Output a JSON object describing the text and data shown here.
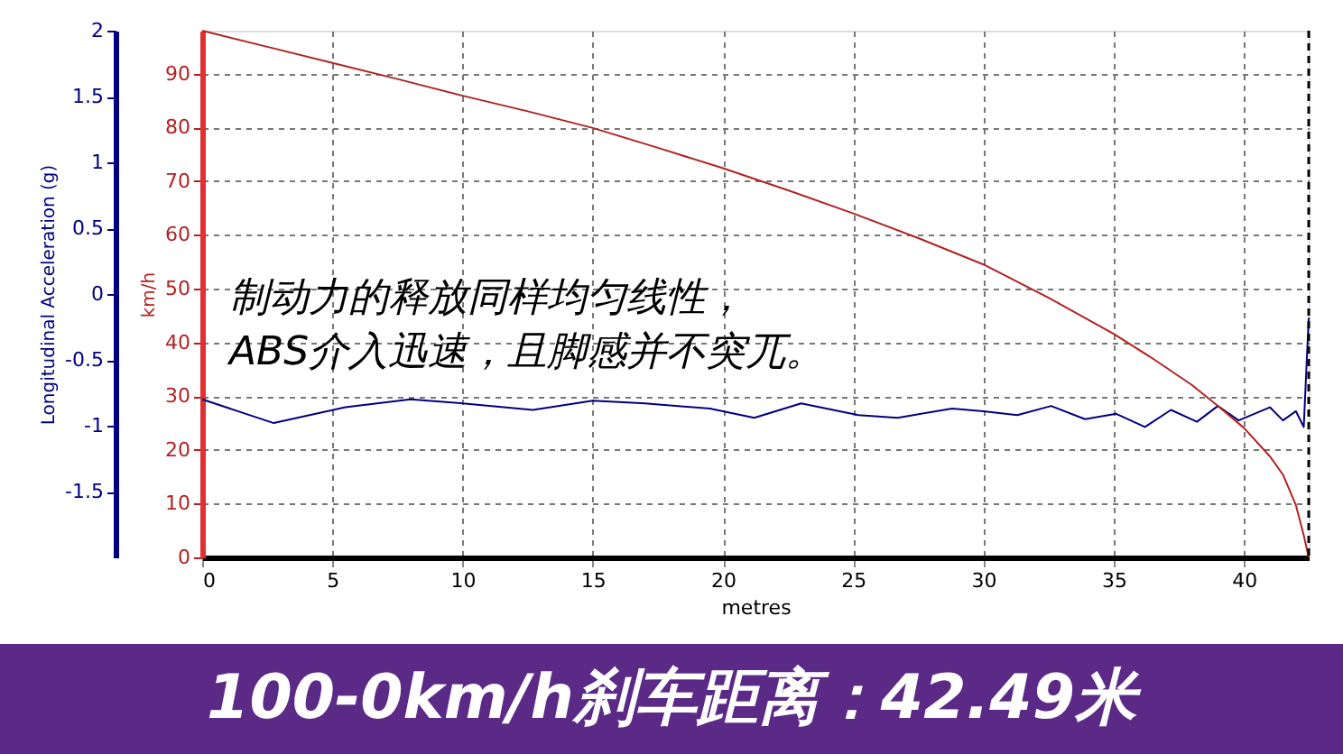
{
  "chart_data": {
    "type": "line",
    "title": "100-0km/h刹车距离：42.49米",
    "xlabel": "metres",
    "ylabel": "Longitudinal Acceleration (g)",
    "y2label": "km/h",
    "annotations": [
      "制动力的释放同样均匀线性，",
      "ABS介入迅速，且脚感并不突兀。"
    ],
    "xlim": [
      0,
      42.49
    ],
    "xticks": [
      0,
      5,
      10,
      15,
      20,
      25,
      30,
      35,
      40
    ],
    "ylim": [
      -2,
      2
    ],
    "yticks": [
      -1.5,
      -1,
      -0.5,
      0,
      0.5,
      1,
      1.5,
      2
    ],
    "y2lim": [
      0,
      98
    ],
    "y2ticks": [
      0,
      10,
      20,
      30,
      40,
      50,
      60,
      70,
      80,
      90
    ],
    "grid": true,
    "ref_lines": [
      {
        "axis": "x",
        "value": 42.49,
        "color": "#000000",
        "line_style": "dashed"
      }
    ],
    "series": [
      {
        "color": "#000080",
        "x": [
          0,
          2.75,
          5.5,
          8,
          10,
          12.7,
          15,
          17,
          19.5,
          21.2,
          23,
          25.2,
          26.7,
          28.8,
          30,
          31.3,
          32.6,
          33.9,
          35.1,
          36.2,
          37.2,
          38.2,
          39,
          39.8,
          41,
          41.5,
          42,
          42.3,
          42.49
        ],
        "values": [
          -0.8,
          -0.98,
          -0.86,
          -0.8,
          -0.83,
          -0.88,
          -0.81,
          -0.83,
          -0.87,
          -0.94,
          -0.83,
          -0.92,
          -0.94,
          -0.87,
          -0.89,
          -0.92,
          -0.85,
          -0.95,
          -0.91,
          -1.01,
          -0.88,
          -0.97,
          -0.85,
          -0.96,
          -0.86,
          -0.96,
          -0.89,
          -1.01,
          -0.18
        ]
      },
      {
        "color": "#b22222",
        "axis": "y2",
        "x": [
          0,
          2.5,
          5,
          7.5,
          10,
          12.5,
          15,
          17.5,
          20,
          22.5,
          25,
          27.5,
          30,
          32.5,
          35,
          36.5,
          38,
          39,
          40,
          41,
          41.5,
          42,
          42.3,
          42.49
        ],
        "values": [
          98,
          95,
          92,
          89,
          85.9,
          83,
          79.9,
          76.2,
          72.4,
          68.3,
          64,
          59.4,
          54.5,
          48.3,
          41.6,
          37,
          32.1,
          28.2,
          24.1,
          18.8,
          15.4,
          9.7,
          4.1,
          0
        ]
      }
    ]
  }
}
